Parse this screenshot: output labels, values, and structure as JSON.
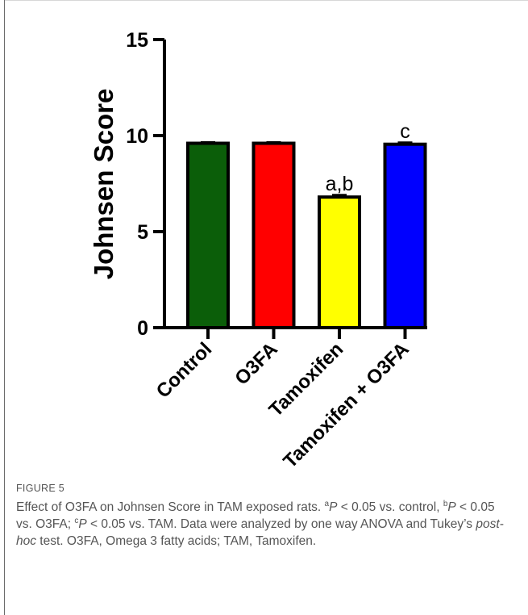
{
  "chart_data": {
    "type": "bar",
    "ylabel": "Johnsen Score",
    "ylim": [
      0,
      15
    ],
    "yticks": [
      0,
      5,
      10,
      15
    ],
    "categories": [
      "Control",
      "O3FA",
      "Tamoxifen",
      "Tamoxifen + O3FA"
    ],
    "values": [
      9.6,
      9.6,
      6.8,
      9.55
    ],
    "errors": [
      0.05,
      0.05,
      0.1,
      0.08
    ],
    "colors": [
      "#0b5e09",
      "#ff0000",
      "#ffff00",
      "#0000ff"
    ],
    "annotations": [
      "",
      "",
      "a,b",
      "c"
    ],
    "grid": false,
    "legend": "none"
  },
  "caption": {
    "label": "FIGURE 5",
    "parts": [
      {
        "t": "Effect of O3FA on Johnsen Score in TAM exposed rats. "
      },
      {
        "t": "a",
        "sup": true
      },
      {
        "t": "P",
        "it": true
      },
      {
        "t": " < 0.05 vs. control, "
      },
      {
        "t": "b",
        "sup": true
      },
      {
        "t": "P",
        "it": true
      },
      {
        "t": " < 0.05 vs. O3FA; "
      },
      {
        "t": "c",
        "sup": true
      },
      {
        "t": "P",
        "it": true
      },
      {
        "t": " < 0.05 vs. TAM. Data were analyzed by one way ANOVA and Tukey’s "
      },
      {
        "t": "post-hoc",
        "it": true
      },
      {
        "t": " test. O3FA, Omega 3 fatty acids; TAM, Tamoxifen."
      }
    ]
  }
}
